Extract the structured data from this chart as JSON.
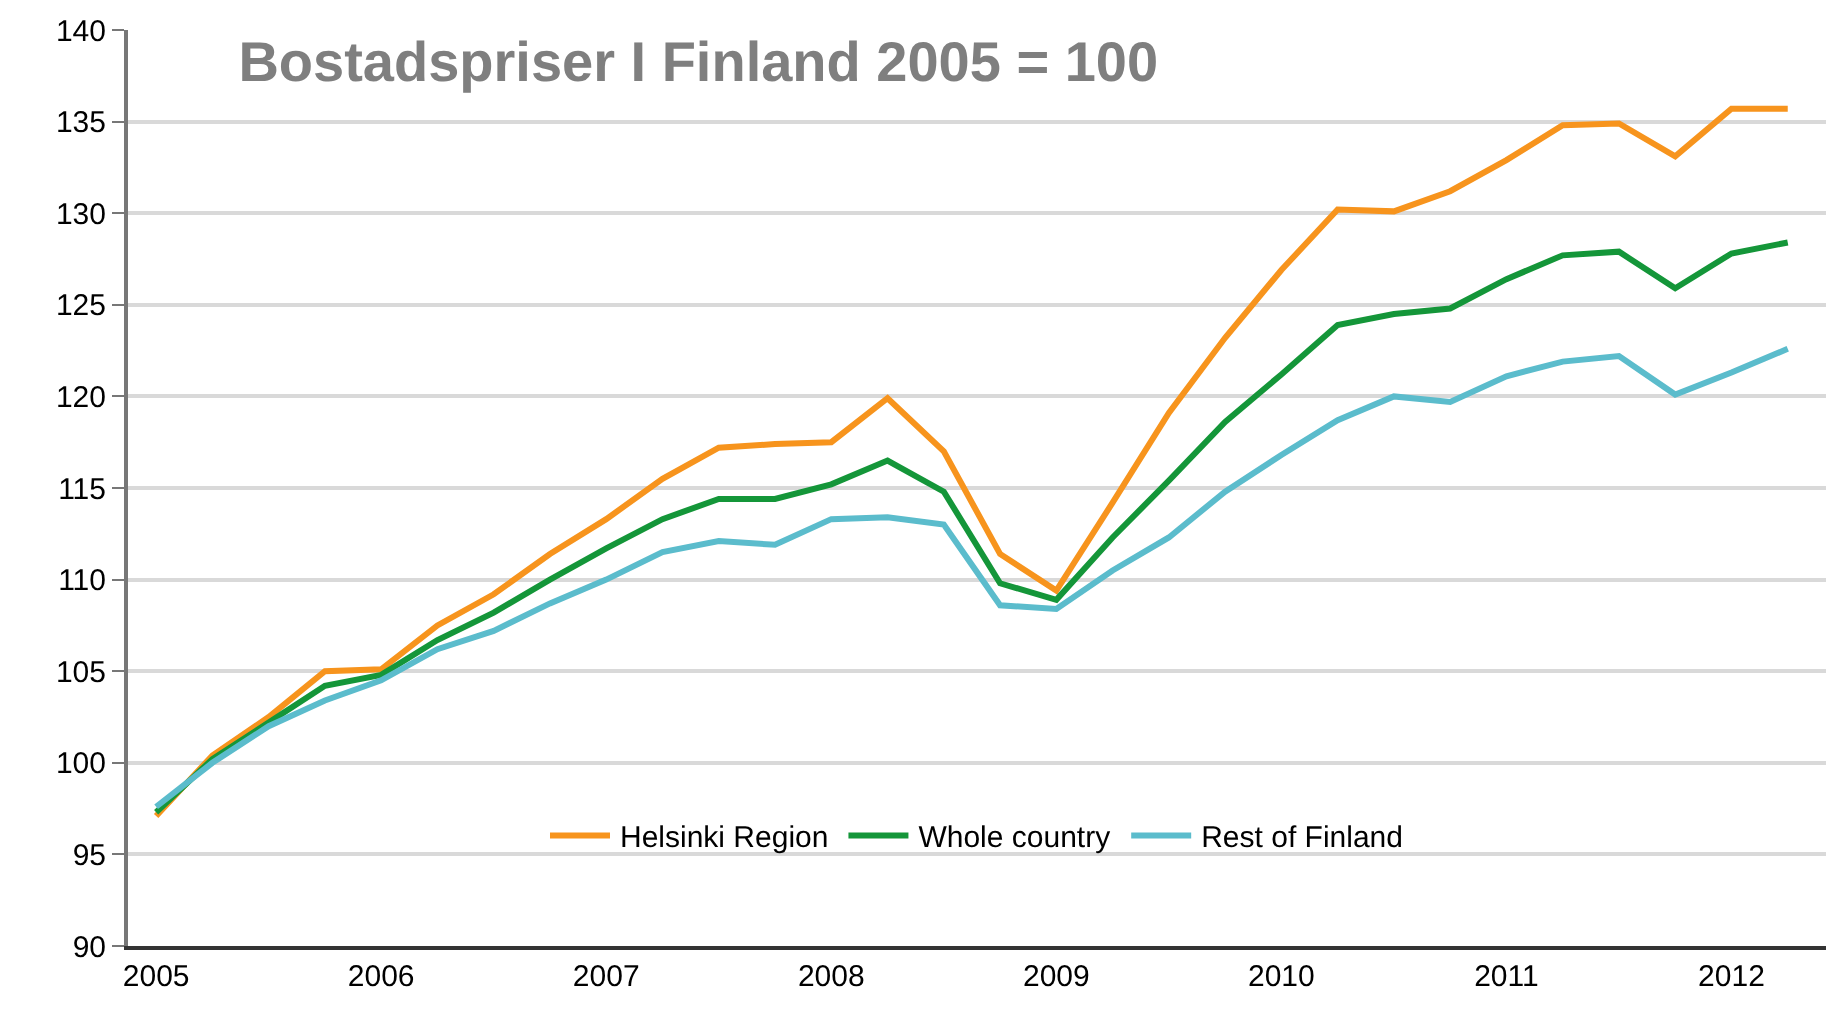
{
  "chart_data": {
    "type": "line",
    "title": "Bostadspriser I Finland 2005 = 100",
    "x": [
      2005,
      2005.25,
      2005.5,
      2005.75,
      2006,
      2006.25,
      2006.5,
      2006.75,
      2007,
      2007.25,
      2007.5,
      2007.75,
      2008,
      2008.25,
      2008.5,
      2008.75,
      2009,
      2009.25,
      2009.5,
      2009.75,
      2010,
      2010.25,
      2010.5,
      2010.75,
      2011,
      2011.25,
      2011.5,
      2011.75,
      2012,
      2012.25
    ],
    "series": [
      {
        "name": "Helsinki Region",
        "color": "#f7941d",
        "values": [
          97.1,
          100.4,
          102.5,
          105,
          105.1,
          107.5,
          109.2,
          111.4,
          113.3,
          115.5,
          117.2,
          117.4,
          117.5,
          119.9,
          117,
          111.4,
          109.4,
          114.2,
          119.1,
          123.2,
          126.9,
          130.2,
          130.1,
          131.2,
          132.9,
          134.8,
          134.9,
          133.1,
          135.7,
          135.7
        ]
      },
      {
        "name": "Whole country",
        "color": "#149639",
        "values": [
          97.3,
          100.2,
          102.2,
          104.2,
          104.8,
          106.7,
          108.2,
          110,
          111.7,
          113.3,
          114.4,
          114.4,
          115.2,
          116.5,
          114.8,
          109.8,
          108.9,
          112.3,
          115.4,
          118.6,
          121.2,
          123.9,
          124.5,
          124.8,
          126.4,
          127.7,
          127.9,
          125.9,
          127.8,
          128.4
        ]
      },
      {
        "name": "Rest of Finland",
        "color": "#5bbccc",
        "values": [
          97.6,
          100,
          102,
          103.4,
          104.5,
          106.2,
          107.2,
          108.7,
          110,
          111.5,
          112.1,
          111.9,
          113.3,
          113.4,
          113,
          108.6,
          108.4,
          110.5,
          112.3,
          114.8,
          116.8,
          118.7,
          120,
          119.7,
          121.1,
          121.9,
          122.2,
          120.1,
          121.3,
          122.6
        ]
      }
    ],
    "xlim": [
      2004.875,
      2012.42
    ],
    "xticks": [
      2005,
      2006,
      2007,
      2008,
      2009,
      2010,
      2011,
      2012
    ],
    "ylim": [
      90,
      140
    ],
    "yticks": [
      90,
      95,
      100,
      105,
      110,
      115,
      120,
      125,
      130,
      135,
      140
    ],
    "grid": "y",
    "legend": "bottom",
    "marker": "none",
    "line_style": "solid"
  }
}
